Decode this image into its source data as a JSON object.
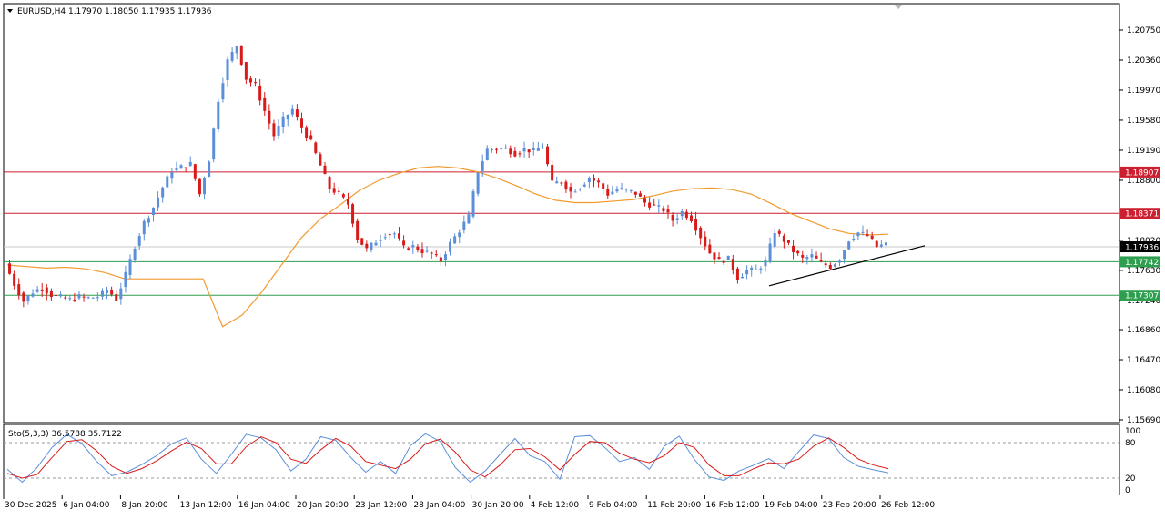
{
  "chart_data": {
    "type": "candlestick",
    "symbol_header": "EURUSD,H4  1.17970 1.18050 1.17935 1.17936",
    "price_axis_ticks": [
      "1.20750",
      "1.20360",
      "1.19970",
      "1.19580",
      "1.19190",
      "1.18800",
      "1.18020",
      "1.17630",
      "1.17240",
      "1.16860",
      "1.16470",
      "1.16080",
      "1.15690"
    ],
    "ylim": [
      1.1569,
      1.2075
    ],
    "time_labels": [
      "30 Dec 2025",
      "6 Jan 04:00",
      "8 Jan 20:00",
      "13 Jan 12:00",
      "16 Jan 04:00",
      "20 Jan 20:00",
      "23 Jan 12:00",
      "28 Jan 04:00",
      "30 Jan 20:00",
      "4 Feb 12:00",
      "9 Feb 04:00",
      "11 Feb 20:00",
      "16 Feb 12:00",
      "19 Feb 04:00",
      "23 Feb 20:00",
      "26 Feb 12:00"
    ],
    "horizontal_levels": [
      {
        "label": "1.18907",
        "value": 1.18907,
        "color": "#cc1f2f"
      },
      {
        "label": "1.18371",
        "value": 1.18371,
        "color": "#cc1f2f"
      },
      {
        "label": "1.17742",
        "value": 1.17742,
        "color": "#2e9e4f"
      },
      {
        "label": "1.17307",
        "value": 1.17307,
        "color": "#2e9e4f"
      }
    ],
    "current_price": {
      "label": "1.17936",
      "value": 1.17936
    },
    "trendline": {
      "from": {
        "time": "19 Feb 04:00",
        "value": 1.1743
      },
      "to": {
        "time": "26 Feb 12:00",
        "value": 1.1795
      }
    },
    "price_path": [
      1.1772,
      1.1745,
      1.1723,
      1.1735,
      1.1741,
      1.1731,
      1.1728,
      1.1725,
      1.1729,
      1.1727,
      1.1729,
      1.1738,
      1.1726,
      1.1757,
      1.1795,
      1.1825,
      1.1845,
      1.1871,
      1.1893,
      1.1897,
      1.1901,
      1.1862,
      1.1907,
      1.1985,
      1.2035,
      1.2055,
      1.2012,
      1.2003,
      1.197,
      1.1938,
      1.1959,
      1.1972,
      1.1948,
      1.1929,
      1.1899,
      1.187,
      1.1862,
      1.1849,
      1.1805,
      1.179,
      1.1801,
      1.181,
      1.1811,
      1.1792,
      1.1794,
      1.1788,
      1.1784,
      1.1776,
      1.1798,
      1.1815,
      1.1833,
      1.1892,
      1.192,
      1.1921,
      1.1921,
      1.1915,
      1.192,
      1.1918,
      1.1924,
      1.1876,
      1.1878,
      1.1865,
      1.1872,
      1.1883,
      1.1876,
      1.1862,
      1.1869,
      1.1867,
      1.1863,
      1.1851,
      1.1846,
      1.1842,
      1.1828,
      1.1839,
      1.183,
      1.1807,
      1.1786,
      1.1775,
      1.1778,
      1.1753,
      1.1763,
      1.1763,
      1.1774,
      1.1814,
      1.1802,
      1.1788,
      1.1778,
      1.1782,
      1.1772,
      1.1768,
      1.1778,
      1.1803,
      1.1812,
      1.1808,
      1.1794,
      1.1797
    ],
    "moving_average": [
      1.177,
      1.1768,
      1.1766,
      1.1767,
      1.1765,
      1.176,
      1.1752,
      1.1752,
      1.1752,
      1.1752,
      1.1752,
      1.169,
      1.1705,
      1.1735,
      1.177,
      1.1805,
      1.183,
      1.1848,
      1.1867,
      1.188,
      1.1889,
      1.1896,
      1.1898,
      1.1896,
      1.1891,
      1.1883,
      1.1873,
      1.1862,
      1.1854,
      1.1851,
      1.1851,
      1.1853,
      1.1855,
      1.186,
      1.1866,
      1.1869,
      1.187,
      1.1868,
      1.1862,
      1.185,
      1.1837,
      1.1827,
      1.1817,
      1.1811,
      1.1809,
      1.181
    ],
    "stochastic": {
      "label": "Sto(5,3,3) 36.5788 35.7122",
      "k": 36.5788,
      "d": 35.7122,
      "ylim": [
        0,
        100
      ],
      "ticks": [
        "100",
        "80",
        "20",
        "0"
      ],
      "levels": [
        80,
        20
      ],
      "k_path": [
        35,
        13,
        38,
        72,
        94,
        78,
        48,
        24,
        30,
        43,
        58,
        78,
        88,
        52,
        28,
        60,
        94,
        88,
        68,
        32,
        52,
        90,
        84,
        55,
        30,
        48,
        28,
        75,
        95,
        82,
        38,
        13,
        32,
        60,
        87,
        58,
        48,
        18,
        90,
        92,
        72,
        48,
        55,
        35,
        74,
        91,
        52,
        22,
        16,
        32,
        42,
        53,
        36,
        65,
        93,
        87,
        55,
        40,
        34,
        29
      ],
      "d_path": [
        28,
        20,
        26,
        55,
        82,
        85,
        66,
        40,
        28,
        36,
        49,
        66,
        81,
        70,
        44,
        44,
        73,
        90,
        80,
        52,
        45,
        68,
        87,
        74,
        48,
        42,
        36,
        52,
        78,
        86,
        64,
        34,
        22,
        42,
        68,
        70,
        56,
        34,
        60,
        82,
        80,
        62,
        52,
        46,
        58,
        80,
        72,
        42,
        24,
        24,
        36,
        46,
        44,
        52,
        74,
        88,
        72,
        52,
        42,
        36
      ]
    },
    "colors": {
      "bull": "#5b8fd9",
      "bear": "#d91a1a",
      "ma": "#f29a2e",
      "k_line": "#5b8fd9",
      "d_line": "#d91a1a",
      "level_red": "#cc1f2f",
      "level_green": "#2e9e4f",
      "current_bg": "#000000"
    }
  }
}
